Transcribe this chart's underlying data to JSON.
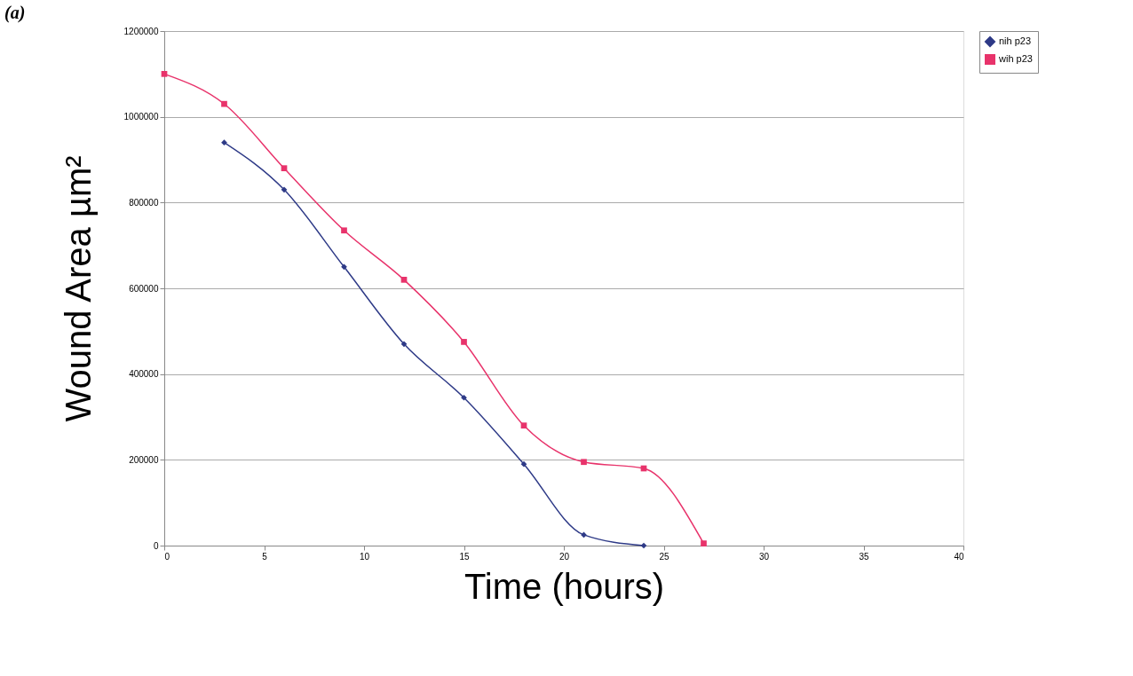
{
  "chart_data": {
    "type": "line",
    "xlabel": "Time (hours)",
    "ylabel": "Wound Area µm²",
    "annotations": [
      "(a)"
    ],
    "series": [
      {
        "name": "nih p23",
        "color": "#2e3a87",
        "marker": "diamond",
        "x": [
          3,
          6,
          9,
          12,
          15,
          18,
          21,
          24
        ],
        "values": [
          940000,
          830000,
          650000,
          470000,
          345000,
          190000,
          25000,
          0
        ]
      },
      {
        "name": "wih p23",
        "color": "#e8336b",
        "marker": "square",
        "x": [
          0,
          3,
          6,
          9,
          12,
          15,
          18,
          21,
          24,
          27
        ],
        "values": [
          1100000,
          1030000,
          880000,
          735000,
          620000,
          475000,
          280000,
          195000,
          180000,
          5000
        ]
      }
    ],
    "xlim": [
      0,
      40
    ],
    "xticks": [
      0,
      5,
      10,
      15,
      20,
      25,
      30,
      35,
      40
    ],
    "ylim": [
      0,
      1200000
    ],
    "yticks": [
      0,
      200000,
      400000,
      600000,
      800000,
      1000000,
      1200000
    ],
    "grid": "y",
    "legend": "right",
    "line_style": "solid"
  }
}
